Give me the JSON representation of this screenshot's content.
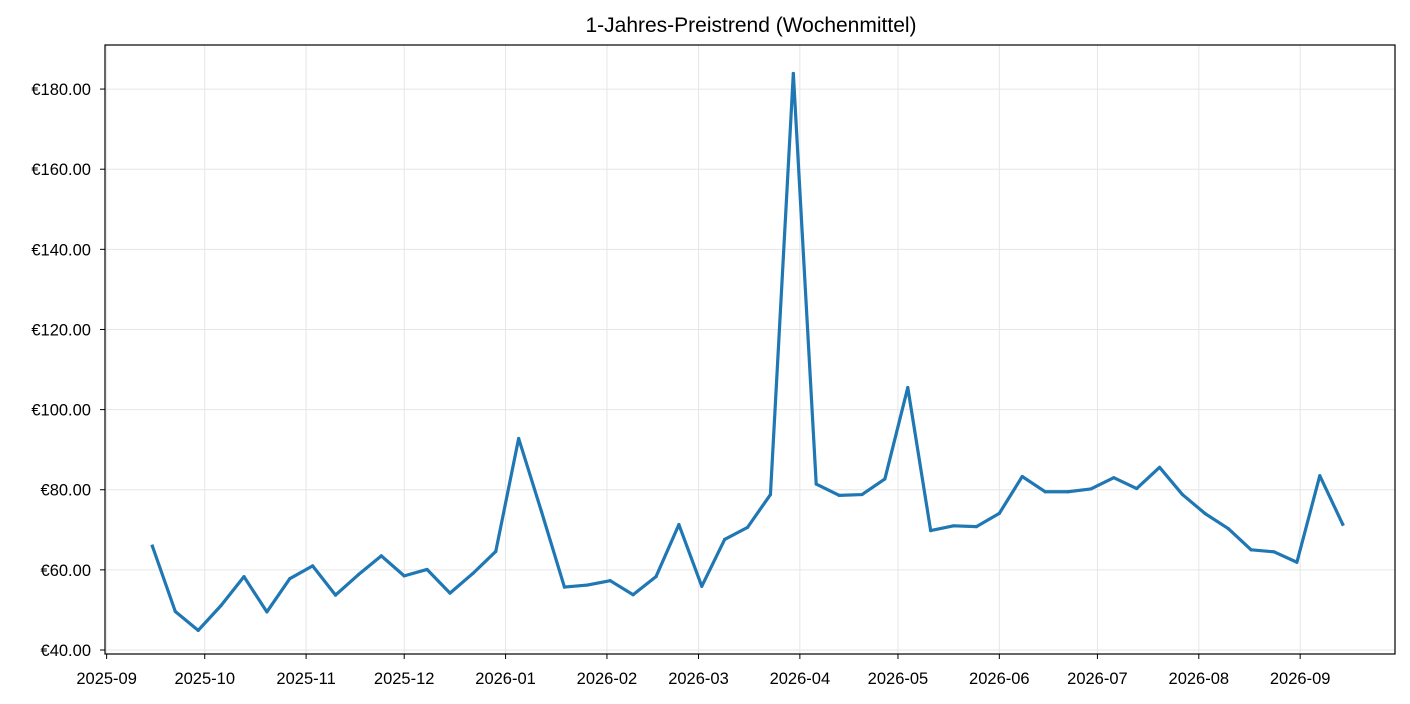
{
  "chart_data": {
    "type": "line",
    "title": "1-Jahres-Preistrend (Wochenmittel)",
    "xlabel": "",
    "ylabel": "",
    "grid": true,
    "ylim": [
      39,
      191
    ],
    "xlim": [
      "2025-09-05",
      "2026-09-30"
    ],
    "y_ticks": [
      {
        "value": 40,
        "label": "€40.00"
      },
      {
        "value": 60,
        "label": "€60.00"
      },
      {
        "value": 80,
        "label": "€80.00"
      },
      {
        "value": 100,
        "label": "€100.00"
      },
      {
        "value": 120,
        "label": "€120.00"
      },
      {
        "value": 140,
        "label": "€140.00"
      },
      {
        "value": 160,
        "label": "€160.00"
      },
      {
        "value": 180,
        "label": "€180.00"
      }
    ],
    "x_ticks": [
      {
        "date": "2025-09-01",
        "label": "2025-09"
      },
      {
        "date": "2025-10-01",
        "label": "2025-10"
      },
      {
        "date": "2025-11-01",
        "label": "2025-11"
      },
      {
        "date": "2025-12-01",
        "label": "2025-12"
      },
      {
        "date": "2026-01-01",
        "label": "2026-01"
      },
      {
        "date": "2026-02-01",
        "label": "2026-02"
      },
      {
        "date": "2026-03-01",
        "label": "2026-03"
      },
      {
        "date": "2026-04-01",
        "label": "2026-04"
      },
      {
        "date": "2026-05-01",
        "label": "2026-05"
      },
      {
        "date": "2026-06-01",
        "label": "2026-06"
      },
      {
        "date": "2026-07-01",
        "label": "2026-07"
      },
      {
        "date": "2026-08-01",
        "label": "2026-08"
      },
      {
        "date": "2026-09-01",
        "label": "2026-09"
      }
    ],
    "line_color": "#1f77b4",
    "x": [
      "2025-09-15",
      "2025-09-22",
      "2025-09-29",
      "2025-10-06",
      "2025-10-13",
      "2025-10-20",
      "2025-10-27",
      "2025-11-03",
      "2025-11-10",
      "2025-11-17",
      "2025-11-24",
      "2025-12-01",
      "2025-12-08",
      "2025-12-15",
      "2025-12-22",
      "2025-12-29",
      "2026-01-05",
      "2026-01-12",
      "2026-01-19",
      "2026-01-26",
      "2026-02-02",
      "2026-02-09",
      "2026-02-16",
      "2026-02-23",
      "2026-03-02",
      "2026-03-09",
      "2026-03-16",
      "2026-03-23",
      "2026-03-30",
      "2026-04-06",
      "2026-04-13",
      "2026-04-20",
      "2026-04-27",
      "2026-05-04",
      "2026-05-11",
      "2026-05-18",
      "2026-05-25",
      "2026-06-01",
      "2026-06-08",
      "2026-06-15",
      "2026-06-22",
      "2026-06-29",
      "2026-07-06",
      "2026-07-13",
      "2026-07-20",
      "2026-07-27",
      "2026-08-03",
      "2026-08-10",
      "2026-08-17",
      "2026-08-24",
      "2026-08-31",
      "2026-09-07",
      "2026-09-14"
    ],
    "y": [
      65.9,
      49.6,
      44.9,
      51.1,
      58.3,
      49.5,
      57.8,
      61.0,
      53.7,
      58.8,
      63.5,
      58.5,
      60.1,
      54.2,
      59.1,
      64.6,
      92.8,
      74.5,
      55.7,
      56.2,
      57.3,
      53.8,
      58.3,
      71.3,
      55.9,
      67.6,
      70.6,
      78.8,
      183.9,
      81.4,
      78.6,
      78.8,
      82.7,
      105.5,
      69.8,
      71.0,
      70.8,
      74.1,
      83.3,
      79.5,
      79.5,
      80.2,
      83.0,
      80.3,
      85.6,
      78.8,
      74.0,
      70.3,
      65.0,
      64.5,
      61.9,
      83.5,
      71.4
    ]
  }
}
